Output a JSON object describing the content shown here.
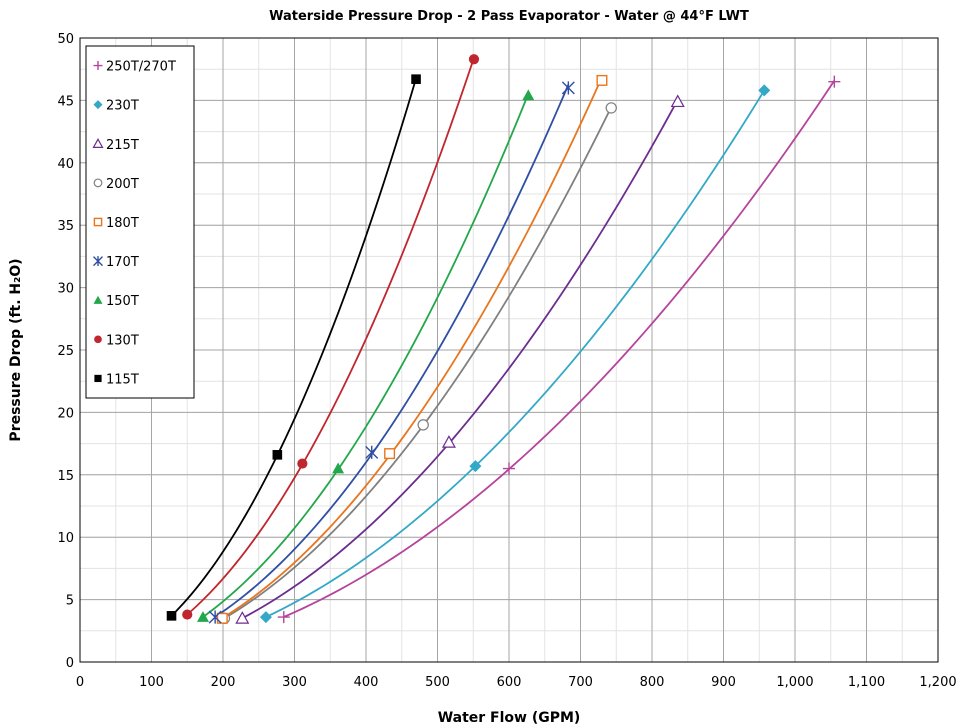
{
  "chart_data": {
    "type": "line",
    "title": "Waterside Pressure Drop - 2 Pass Evaporator - Water @ 44°F LWT",
    "xlabel": "Water Flow (GPM)",
    "ylabel": "Pressure Drop (ft. H₂O)",
    "xlim": [
      0,
      1200
    ],
    "ylim": [
      0,
      50
    ],
    "x_major_ticks": [
      0,
      100,
      200,
      300,
      400,
      500,
      600,
      700,
      800,
      900,
      1000,
      1100,
      1200
    ],
    "x_tick_labels": [
      "0",
      "100",
      "200",
      "300",
      "400",
      "500",
      "600",
      "700",
      "800",
      "900",
      "1,000",
      "1,100",
      "1,200"
    ],
    "x_minor_step": 50,
    "y_major_ticks": [
      0,
      5,
      10,
      15,
      20,
      25,
      30,
      35,
      40,
      45,
      50
    ],
    "y_tick_labels": [
      "0",
      "5",
      "10",
      "15",
      "20",
      "25",
      "30",
      "35",
      "40",
      "45",
      "50"
    ],
    "y_minor_step": 2.5,
    "grid": true,
    "legend_position": "top-left",
    "series": [
      {
        "name": "250T/270T",
        "marker": "plus",
        "color": "#b5449b",
        "points": [
          [
            285,
            3.6
          ],
          [
            600,
            15.5
          ],
          [
            1055,
            46.5
          ]
        ]
      },
      {
        "name": "230T",
        "marker": "diamond",
        "color": "#33a8c7",
        "points": [
          [
            260,
            3.6
          ],
          [
            553,
            15.7
          ],
          [
            957,
            45.8
          ]
        ]
      },
      {
        "name": "215T",
        "marker": "triangle-open",
        "color": "#6b2d8f",
        "points": [
          [
            227,
            3.5
          ],
          [
            516,
            17.6
          ],
          [
            836,
            44.9
          ]
        ]
      },
      {
        "name": "200T",
        "marker": "circle-open",
        "color": "#808080",
        "points": [
          [
            202,
            3.5
          ],
          [
            480,
            19.0
          ],
          [
            743,
            44.4
          ]
        ]
      },
      {
        "name": "180T",
        "marker": "square-open",
        "color": "#e8761e",
        "points": [
          [
            199,
            3.5
          ],
          [
            433,
            16.7
          ],
          [
            730,
            46.6
          ]
        ]
      },
      {
        "name": "170T",
        "marker": "star",
        "color": "#2f4fa4",
        "points": [
          [
            189,
            3.6
          ],
          [
            408,
            16.8
          ],
          [
            683,
            46.0
          ]
        ]
      },
      {
        "name": "150T",
        "marker": "triangle",
        "color": "#22a84a",
        "points": [
          [
            172,
            3.6
          ],
          [
            361,
            15.5
          ],
          [
            627,
            45.4
          ]
        ]
      },
      {
        "name": "130T",
        "marker": "circle",
        "color": "#c0262d",
        "points": [
          [
            150,
            3.8
          ],
          [
            311,
            15.9
          ],
          [
            551,
            48.3
          ]
        ]
      },
      {
        "name": "115T",
        "marker": "square",
        "color": "#000000",
        "points": [
          [
            128,
            3.7
          ],
          [
            276,
            16.6
          ],
          [
            470,
            46.7
          ]
        ]
      }
    ]
  }
}
